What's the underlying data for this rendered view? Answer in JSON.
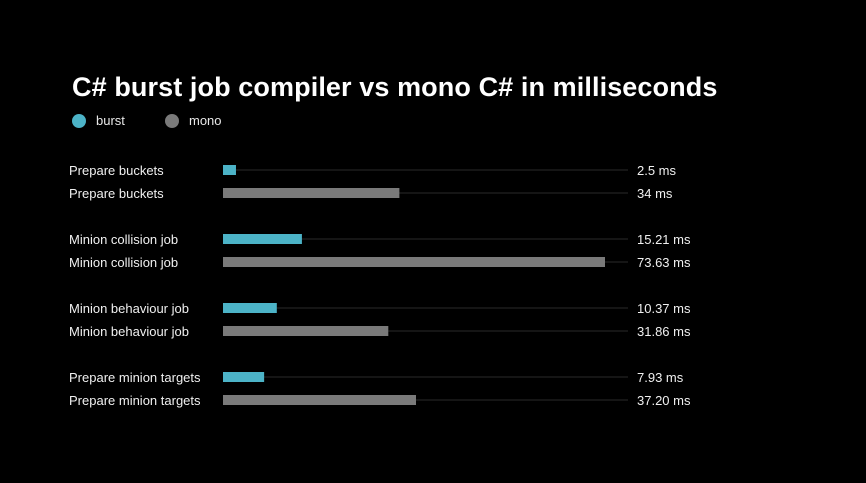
{
  "chart_data": {
    "type": "bar",
    "orientation": "horizontal",
    "title": "C# burst job compiler vs mono C# in milliseconds",
    "legend": [
      {
        "name": "burst",
        "color": "#4cb3c7"
      },
      {
        "name": "mono",
        "color": "#7a7a7a"
      }
    ],
    "legend_position": "top-left",
    "grid": false,
    "xlim": [
      0,
      73.63
    ],
    "rows": [
      {
        "category": "Prepare buckets",
        "series": "burst",
        "value": 2.5,
        "value_label": "2.5 ms"
      },
      {
        "category": "Prepare buckets",
        "series": "mono",
        "value": 34,
        "value_label": "34 ms"
      },
      {
        "category": "Minion collision job",
        "series": "burst",
        "value": 15.21,
        "value_label": "15.21 ms"
      },
      {
        "category": "Minion collision job",
        "series": "mono",
        "value": 73.63,
        "value_label": "73.63 ms"
      },
      {
        "category": "Minion behaviour job",
        "series": "burst",
        "value": 10.37,
        "value_label": "10.37 ms"
      },
      {
        "category": "Minion behaviour job",
        "series": "mono",
        "value": 31.86,
        "value_label": "31.86 ms"
      },
      {
        "category": "Prepare minion targets",
        "series": "burst",
        "value": 7.93,
        "value_label": "7.93 ms"
      },
      {
        "category": "Prepare minion targets",
        "series": "mono",
        "value": 37.2,
        "value_label": "37.20 ms"
      }
    ],
    "colors": {
      "burst": "#4cb3c7",
      "mono": "#7a7a7a",
      "track": "#2a2a2a",
      "background": "#000000"
    }
  }
}
